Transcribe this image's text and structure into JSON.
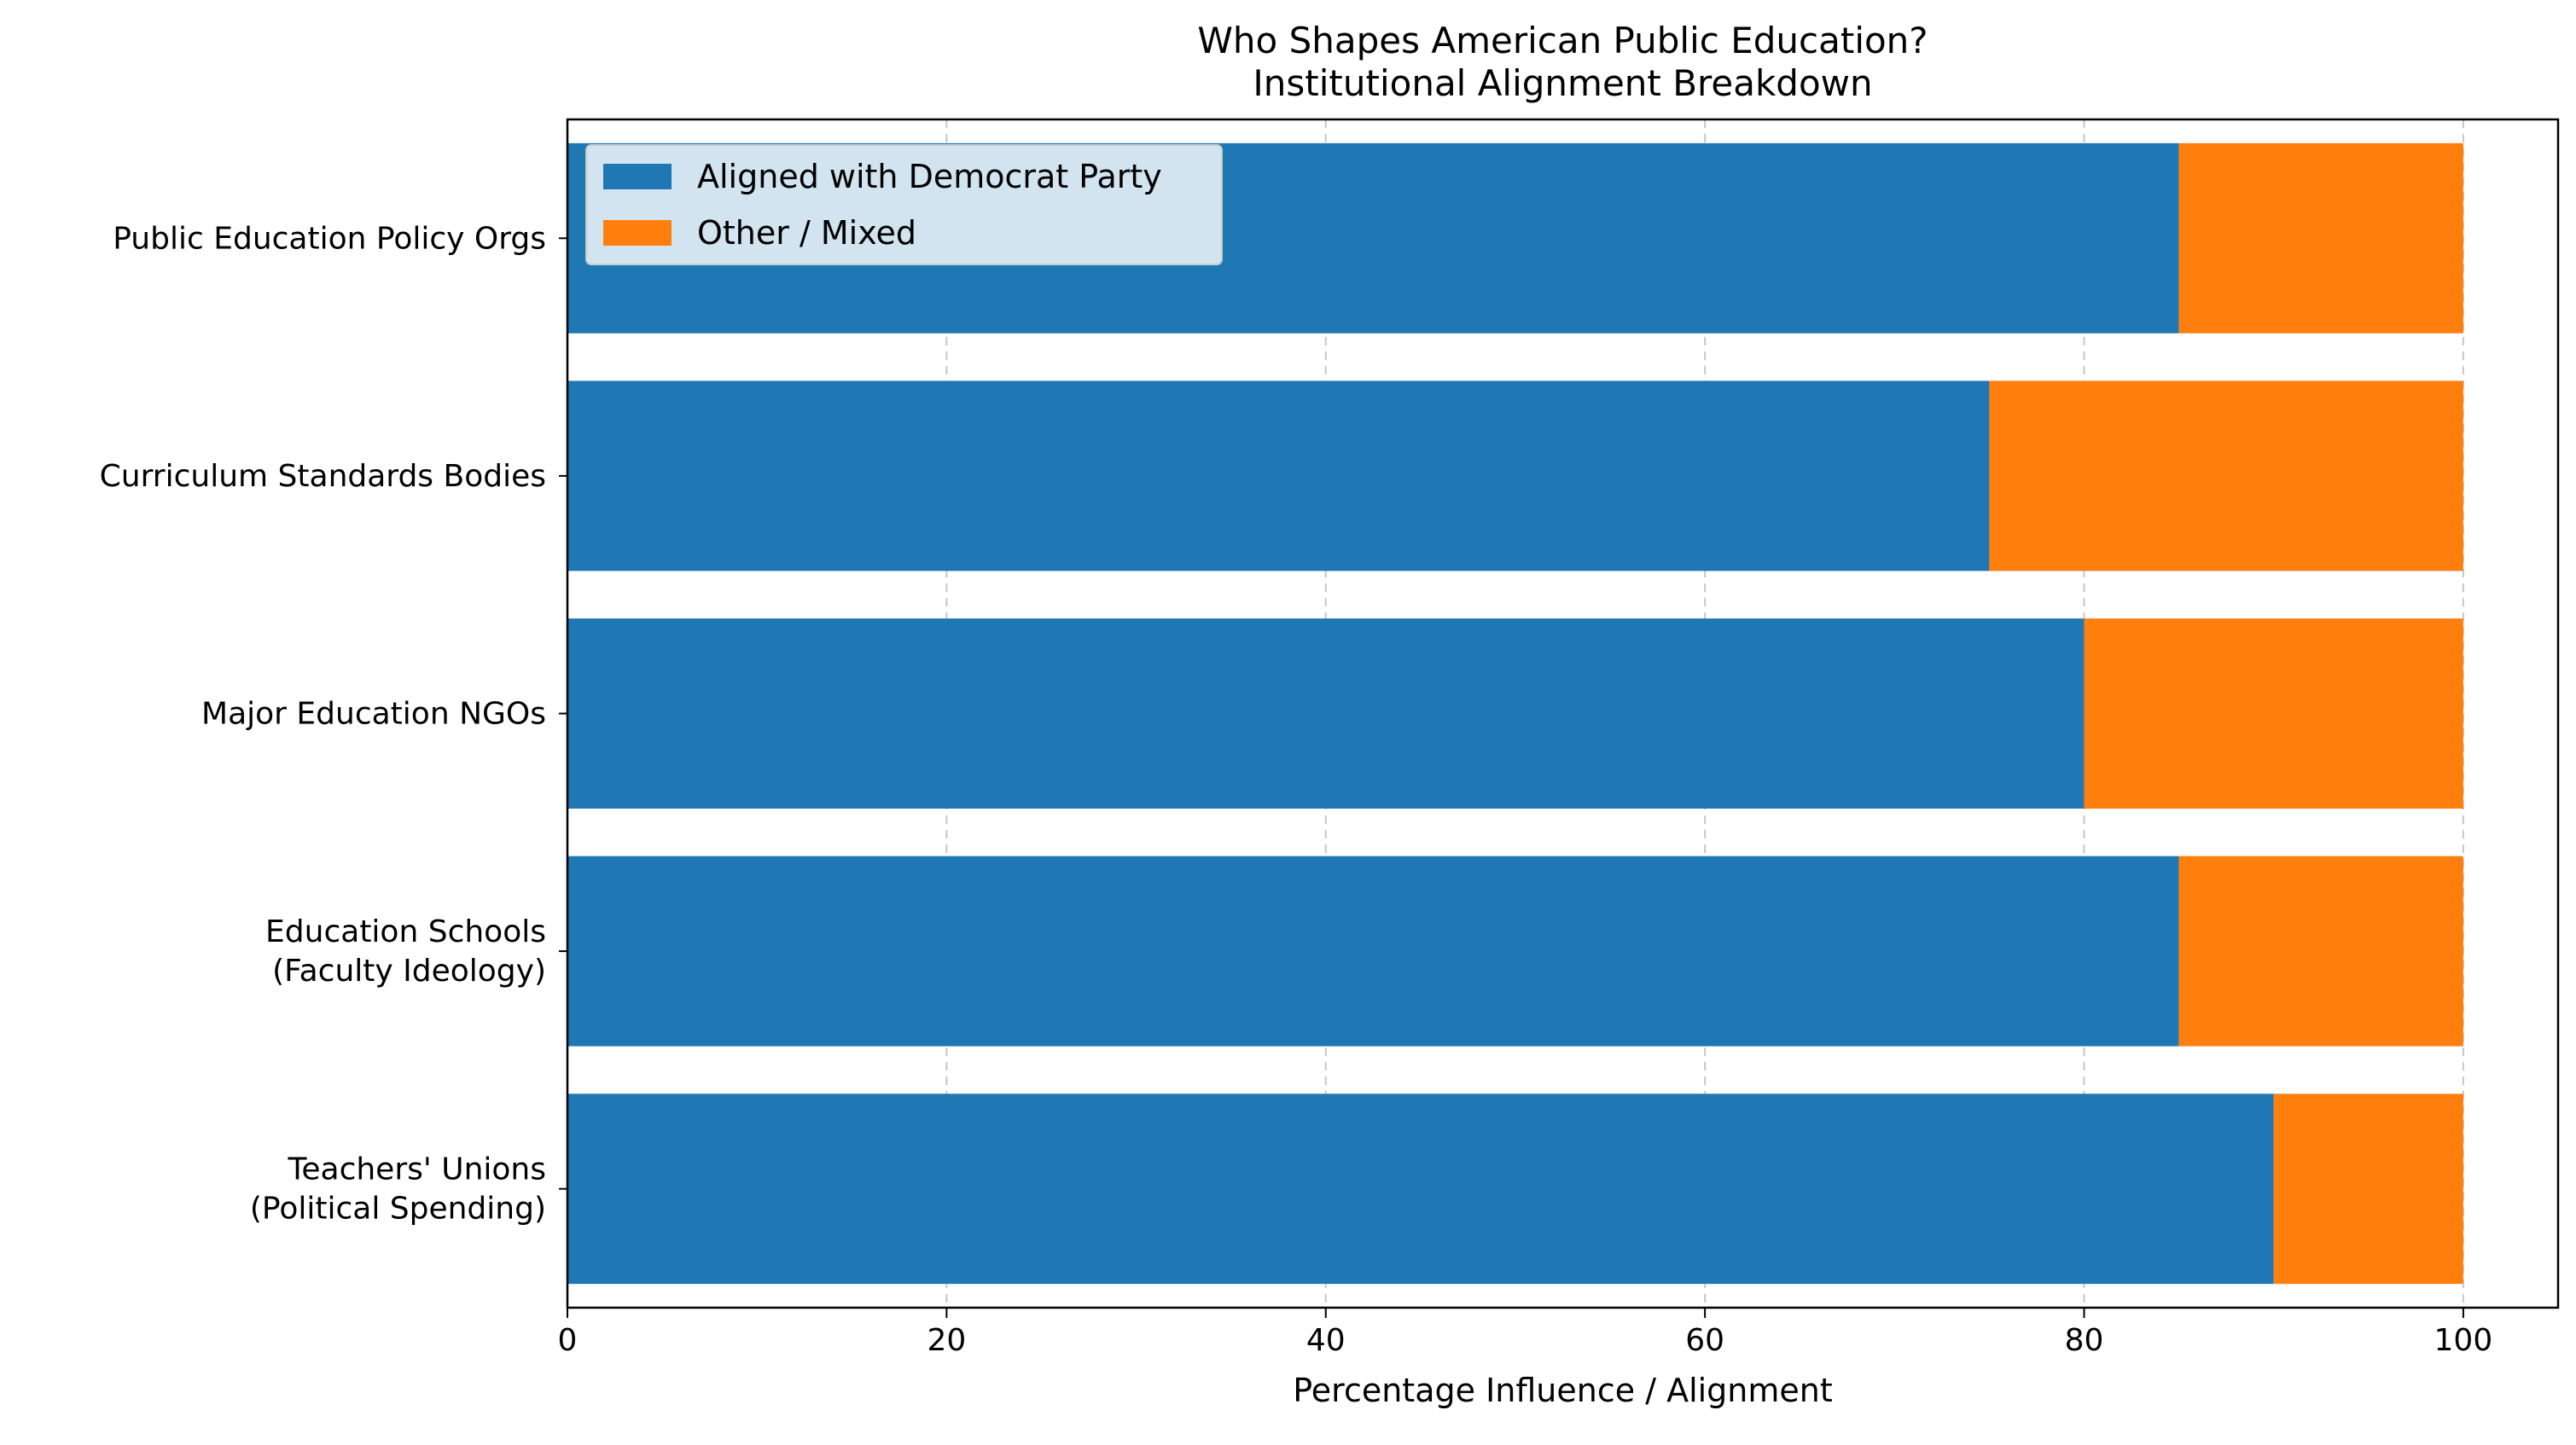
{
  "chart_data": {
    "type": "bar",
    "orientation": "horizontal",
    "stacked": true,
    "title": "Who Shapes American Public Education?\nInstitutional Alignment Breakdown",
    "xlabel": "Percentage Influence / Alignment",
    "ylabel": "",
    "xlim": [
      0,
      105
    ],
    "xticks": [
      0,
      20,
      40,
      60,
      80,
      100
    ],
    "grid": {
      "x": true,
      "y": false,
      "style": "dashed"
    },
    "legend_placement": "top-left",
    "categories": [
      "Public Education Policy Orgs",
      "Curriculum Standards Bodies",
      "Major Education NGOs",
      "Education Schools\n(Faculty Ideology)",
      "Teachers' Unions\n(Political Spending)"
    ],
    "series": [
      {
        "name": "Aligned with Democrat Party",
        "color": "#1f77b4",
        "values": [
          85,
          75,
          80,
          85,
          90
        ]
      },
      {
        "name": "Other / Mixed",
        "color": "#ff7f0e",
        "values": [
          15,
          25,
          20,
          15,
          10
        ]
      }
    ]
  }
}
